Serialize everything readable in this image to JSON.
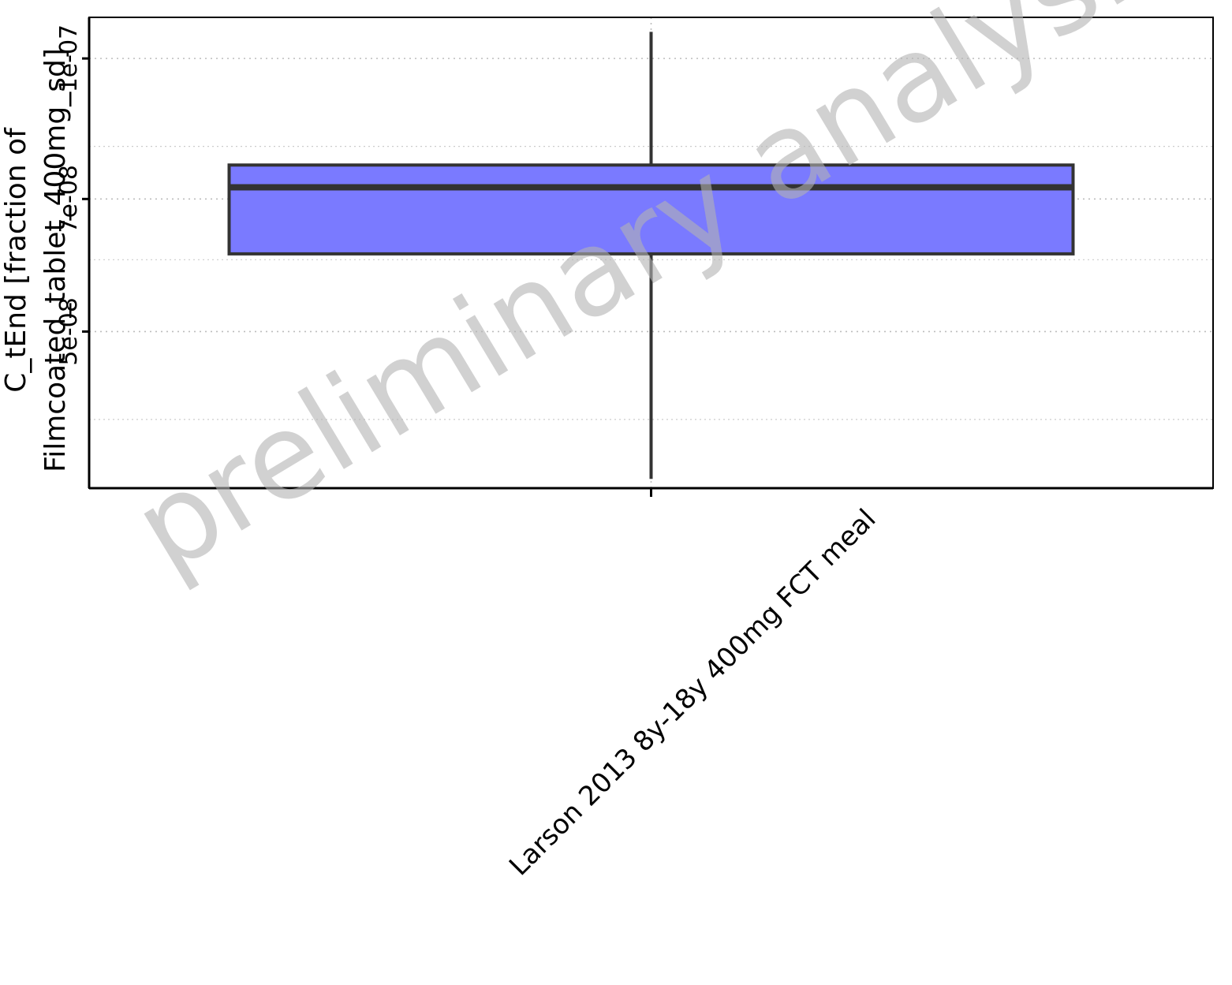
{
  "chart_data": {
    "type": "box",
    "categories": [
      "Larson 2013 8y-18y 400mg FCT meal"
    ],
    "series": [
      {
        "category": "Larson 2013 8y-18y 400mg FCT meal",
        "whisker_low": 3.44e-08,
        "q1": 6.09e-08,
        "median": 7.21e-08,
        "q3": 7.63e-08,
        "whisker_high": 1.07e-07
      }
    ],
    "y_ticks": [
      {
        "value": 5e-08,
        "label": "5e-08"
      },
      {
        "value": 7e-08,
        "label": "7e-08"
      },
      {
        "value": 1e-07,
        "label": "1e-07"
      }
    ],
    "y_minor_ticks": [
      4e-08,
      6e-08,
      8e-08
    ],
    "ylim": [
      3.36e-08,
      1.11e-07
    ],
    "y_scale": "log",
    "ylabel_lines": [
      "C_tEnd [fraction of",
      "Filmcoated_tablet_400mg_sd]"
    ],
    "xlabel": "",
    "grid": true,
    "watermark": "preliminary analysis",
    "colors": {
      "box_fill": "#7a7aff",
      "box_stroke": "#333333",
      "grid": "#cccccc",
      "watermark": "#b3b3b3"
    }
  }
}
